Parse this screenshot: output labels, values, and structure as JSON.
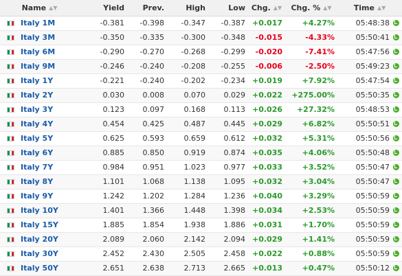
{
  "columns": [
    {
      "key": "name",
      "label": "Name"
    },
    {
      "key": "yield",
      "label": "Yield"
    },
    {
      "key": "prev",
      "label": "Prev."
    },
    {
      "key": "high",
      "label": "High"
    },
    {
      "key": "low",
      "label": "Low"
    },
    {
      "key": "chg",
      "label": "Chg."
    },
    {
      "key": "chg_pct",
      "label": "Chg. %"
    },
    {
      "key": "time",
      "label": "Time"
    }
  ],
  "sort_icon": "sort-arrows-icon",
  "colors": {
    "positive": "#2b9a2b",
    "negative": "#e8001c",
    "link": "#1a5ca8",
    "clock": "#4cae2a"
  },
  "rows": [
    {
      "flag": "italy-flag-icon",
      "name": "Italy 1M",
      "yield": "-0.381",
      "prev": "-0.398",
      "high": "-0.347",
      "low": "-0.387",
      "chg": "+0.017",
      "chg_pct": "+4.27%",
      "time": "05:48:38",
      "dir": "pos"
    },
    {
      "flag": "italy-flag-icon",
      "name": "Italy 3M",
      "yield": "-0.350",
      "prev": "-0.335",
      "high": "-0.300",
      "low": "-0.348",
      "chg": "-0.015",
      "chg_pct": "-4.33%",
      "time": "05:50:41",
      "dir": "neg"
    },
    {
      "flag": "italy-flag-icon",
      "name": "Italy 6M",
      "yield": "-0.290",
      "prev": "-0.270",
      "high": "-0.268",
      "low": "-0.299",
      "chg": "-0.020",
      "chg_pct": "-7.41%",
      "time": "05:47:56",
      "dir": "neg"
    },
    {
      "flag": "italy-flag-icon",
      "name": "Italy 9M",
      "yield": "-0.246",
      "prev": "-0.240",
      "high": "-0.208",
      "low": "-0.255",
      "chg": "-0.006",
      "chg_pct": "-2.50%",
      "time": "05:49:23",
      "dir": "neg"
    },
    {
      "flag": "italy-flag-icon",
      "name": "Italy 1Y",
      "yield": "-0.221",
      "prev": "-0.240",
      "high": "-0.202",
      "low": "-0.234",
      "chg": "+0.019",
      "chg_pct": "+7.92%",
      "time": "05:47:54",
      "dir": "pos"
    },
    {
      "flag": "italy-flag-icon",
      "name": "Italy 2Y",
      "yield": "0.030",
      "prev": "0.008",
      "high": "0.070",
      "low": "0.029",
      "chg": "+0.022",
      "chg_pct": "+275.00%",
      "time": "05:50:35",
      "dir": "pos"
    },
    {
      "flag": "italy-flag-icon",
      "name": "Italy 3Y",
      "yield": "0.123",
      "prev": "0.097",
      "high": "0.168",
      "low": "0.113",
      "chg": "+0.026",
      "chg_pct": "+27.32%",
      "time": "05:48:53",
      "dir": "pos"
    },
    {
      "flag": "italy-flag-icon",
      "name": "Italy 4Y",
      "yield": "0.454",
      "prev": "0.425",
      "high": "0.487",
      "low": "0.445",
      "chg": "+0.029",
      "chg_pct": "+6.82%",
      "time": "05:50:51",
      "dir": "pos"
    },
    {
      "flag": "italy-flag-icon",
      "name": "Italy 5Y",
      "yield": "0.625",
      "prev": "0.593",
      "high": "0.659",
      "low": "0.612",
      "chg": "+0.032",
      "chg_pct": "+5.31%",
      "time": "05:50:56",
      "dir": "pos"
    },
    {
      "flag": "italy-flag-icon",
      "name": "Italy 6Y",
      "yield": "0.885",
      "prev": "0.850",
      "high": "0.919",
      "low": "0.874",
      "chg": "+0.035",
      "chg_pct": "+4.06%",
      "time": "05:50:48",
      "dir": "pos"
    },
    {
      "flag": "italy-flag-icon",
      "name": "Italy 7Y",
      "yield": "0.984",
      "prev": "0.951",
      "high": "1.023",
      "low": "0.977",
      "chg": "+0.033",
      "chg_pct": "+3.52%",
      "time": "05:50:47",
      "dir": "pos"
    },
    {
      "flag": "italy-flag-icon",
      "name": "Italy 8Y",
      "yield": "1.101",
      "prev": "1.068",
      "high": "1.138",
      "low": "1.095",
      "chg": "+0.032",
      "chg_pct": "+3.04%",
      "time": "05:50:47",
      "dir": "pos"
    },
    {
      "flag": "italy-flag-icon",
      "name": "Italy 9Y",
      "yield": "1.242",
      "prev": "1.202",
      "high": "1.284",
      "low": "1.236",
      "chg": "+0.040",
      "chg_pct": "+3.29%",
      "time": "05:50:59",
      "dir": "pos"
    },
    {
      "flag": "italy-flag-icon",
      "name": "Italy 10Y",
      "yield": "1.401",
      "prev": "1.366",
      "high": "1.448",
      "low": "1.398",
      "chg": "+0.034",
      "chg_pct": "+2.53%",
      "time": "05:50:59",
      "dir": "pos"
    },
    {
      "flag": "italy-flag-icon",
      "name": "Italy 15Y",
      "yield": "1.885",
      "prev": "1.854",
      "high": "1.938",
      "low": "1.886",
      "chg": "+0.031",
      "chg_pct": "+1.70%",
      "time": "05:50:59",
      "dir": "pos"
    },
    {
      "flag": "italy-flag-icon",
      "name": "Italy 20Y",
      "yield": "2.089",
      "prev": "2.060",
      "high": "2.142",
      "low": "2.094",
      "chg": "+0.029",
      "chg_pct": "+1.41%",
      "time": "05:50:59",
      "dir": "pos"
    },
    {
      "flag": "italy-flag-icon",
      "name": "Italy 30Y",
      "yield": "2.452",
      "prev": "2.430",
      "high": "2.505",
      "low": "2.458",
      "chg": "+0.022",
      "chg_pct": "+0.88%",
      "time": "05:50:59",
      "dir": "pos"
    },
    {
      "flag": "italy-flag-icon",
      "name": "Italy 50Y",
      "yield": "2.651",
      "prev": "2.638",
      "high": "2.713",
      "low": "2.665",
      "chg": "+0.013",
      "chg_pct": "+0.47%",
      "time": "05:50:12",
      "dir": "pos"
    }
  ]
}
